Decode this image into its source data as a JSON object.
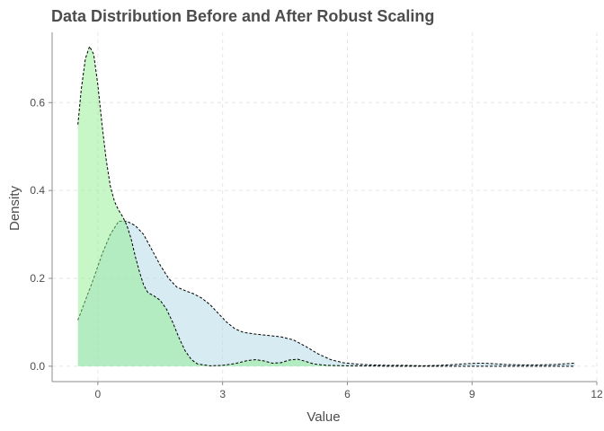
{
  "chart_data": {
    "type": "area",
    "title": "Data Distribution Before and After Robust Scaling",
    "xlabel": "Value",
    "ylabel": "Density",
    "xlim": [
      -1.1,
      12
    ],
    "ylim": [
      -0.035,
      0.76
    ],
    "x_ticks": [
      0,
      3,
      6,
      9,
      12
    ],
    "y_ticks": [
      0.0,
      0.2,
      0.4,
      0.6
    ],
    "y_tick_labels": [
      "0.0",
      "0.2",
      "0.4",
      "0.6"
    ],
    "grid": true,
    "legend": "none",
    "series": [
      {
        "fill": "#add8e6",
        "points": [
          [
            -0.48,
            0.105
          ],
          [
            -0.3,
            0.15
          ],
          [
            -0.1,
            0.2
          ],
          [
            0.1,
            0.255
          ],
          [
            0.3,
            0.3
          ],
          [
            0.5,
            0.33
          ],
          [
            0.7,
            0.33
          ],
          [
            0.9,
            0.32
          ],
          [
            1.1,
            0.3
          ],
          [
            1.3,
            0.265
          ],
          [
            1.5,
            0.23
          ],
          [
            1.7,
            0.2
          ],
          [
            1.9,
            0.18
          ],
          [
            2.1,
            0.172
          ],
          [
            2.3,
            0.165
          ],
          [
            2.5,
            0.155
          ],
          [
            2.7,
            0.14
          ],
          [
            2.9,
            0.12
          ],
          [
            3.1,
            0.1
          ],
          [
            3.3,
            0.085
          ],
          [
            3.5,
            0.077
          ],
          [
            3.8,
            0.073
          ],
          [
            4.1,
            0.07
          ],
          [
            4.4,
            0.067
          ],
          [
            4.7,
            0.06
          ],
          [
            5.0,
            0.045
          ],
          [
            5.3,
            0.028
          ],
          [
            5.6,
            0.015
          ],
          [
            5.9,
            0.008
          ],
          [
            6.2,
            0.005
          ],
          [
            6.6,
            0.003
          ],
          [
            7.0,
            0.002
          ],
          [
            7.4,
            0.002
          ],
          [
            7.8,
            0.001
          ],
          [
            8.2,
            0.002
          ],
          [
            8.6,
            0.004
          ],
          [
            8.9,
            0.006
          ],
          [
            9.2,
            0.007
          ],
          [
            9.5,
            0.006
          ],
          [
            9.8,
            0.004
          ],
          [
            10.2,
            0.003
          ],
          [
            10.6,
            0.003
          ],
          [
            11.0,
            0.004
          ],
          [
            11.3,
            0.006
          ],
          [
            11.48,
            0.007
          ]
        ]
      },
      {
        "fill": "#90ee90",
        "points": [
          [
            -0.48,
            0.55
          ],
          [
            -0.4,
            0.63
          ],
          [
            -0.3,
            0.7
          ],
          [
            -0.2,
            0.728
          ],
          [
            -0.1,
            0.71
          ],
          [
            0.0,
            0.64
          ],
          [
            0.1,
            0.55
          ],
          [
            0.2,
            0.47
          ],
          [
            0.3,
            0.41
          ],
          [
            0.4,
            0.375
          ],
          [
            0.5,
            0.355
          ],
          [
            0.6,
            0.34
          ],
          [
            0.7,
            0.32
          ],
          [
            0.8,
            0.29
          ],
          [
            0.9,
            0.25
          ],
          [
            1.0,
            0.215
          ],
          [
            1.1,
            0.185
          ],
          [
            1.2,
            0.168
          ],
          [
            1.35,
            0.16
          ],
          [
            1.5,
            0.15
          ],
          [
            1.65,
            0.13
          ],
          [
            1.8,
            0.1
          ],
          [
            1.95,
            0.065
          ],
          [
            2.1,
            0.035
          ],
          [
            2.25,
            0.015
          ],
          [
            2.4,
            0.005
          ],
          [
            2.7,
            0.001
          ],
          [
            3.0,
            0.002
          ],
          [
            3.3,
            0.006
          ],
          [
            3.6,
            0.013
          ],
          [
            3.8,
            0.015
          ],
          [
            4.0,
            0.012
          ],
          [
            4.2,
            0.007
          ],
          [
            4.4,
            0.008
          ],
          [
            4.6,
            0.014
          ],
          [
            4.8,
            0.016
          ],
          [
            5.0,
            0.011
          ],
          [
            5.2,
            0.005
          ],
          [
            5.5,
            0.002
          ],
          [
            6.0,
            0.001
          ],
          [
            7.0,
            0.0
          ],
          [
            8.0,
            0.0
          ],
          [
            9.0,
            0.0
          ],
          [
            10.0,
            0.0
          ],
          [
            11.48,
            0.0
          ]
        ]
      }
    ]
  }
}
